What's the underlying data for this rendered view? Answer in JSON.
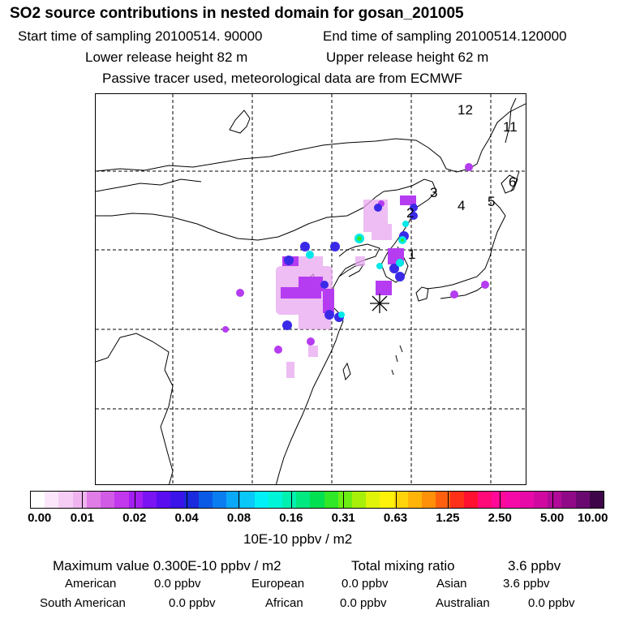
{
  "header": {
    "title": "SO2 source contributions in nested domain for gosan_201005",
    "start_time_label": "Start time of sampling 20100514. 90000",
    "end_time_label": "End time of sampling 20100514.120000",
    "lower_release_label": "Lower release height   82 m",
    "upper_release_label": "Upper release height   62 m",
    "tracer_note": "Passive tracer used, meteorological data are from ECMWF"
  },
  "map": {
    "region_labels": [
      "1",
      "2",
      "3",
      "4",
      "5",
      "6",
      "11",
      "12"
    ],
    "receptor_marker": "gosan-station"
  },
  "colorbar": {
    "tick_labels": [
      "0.00",
      "0.01",
      "0.02",
      "0.04",
      "0.08",
      "0.16",
      "0.31",
      "0.63",
      "1.25",
      "2.50",
      "5.00",
      "10.00"
    ],
    "colors": [
      "#ffffff",
      "#fbe6fb",
      "#f5cdf5",
      "#efb4ef",
      "#e07de6",
      "#d25be6",
      "#c238ec",
      "#a31ef0",
      "#7a14f2",
      "#5a0ef0",
      "#3a14e8",
      "#1a2adc",
      "#0a5ae6",
      "#0a7df0",
      "#0aa8f8",
      "#0ac8f8",
      "#00f0f8",
      "#00f4d8",
      "#00f0b0",
      "#00e880",
      "#00e050",
      "#30e828",
      "#6cee14",
      "#a8f00a",
      "#e0f40a",
      "#fff20a",
      "#ffd40a",
      "#ffb40a",
      "#ff900a",
      "#ff6010",
      "#ff3018",
      "#ff1030",
      "#ff0a78",
      "#ff0a98",
      "#f50aa8",
      "#e80aa8",
      "#d00aa0",
      "#b00a98",
      "#900a88",
      "#6a0a70",
      "#3e0648"
    ],
    "units": "10E-10 ppbv / m2"
  },
  "stats": {
    "max_label": "Maximum value  0.300E-10 ppbv / m2",
    "total_label": "Total mixing ratio",
    "total_value": "3.6 ppbv",
    "american_label": "American",
    "american_value": "0.0 ppbv",
    "european_label": "European",
    "european_value": "0.0 ppbv",
    "asian_label": "Asian",
    "asian_value": "3.6 ppbv",
    "south_american_label": "South American",
    "south_american_value": "0.0 ppbv",
    "african_label": "African",
    "african_value": "0.0 ppbv",
    "australian_label": "Australian",
    "australian_value": "0.0 ppbv"
  }
}
